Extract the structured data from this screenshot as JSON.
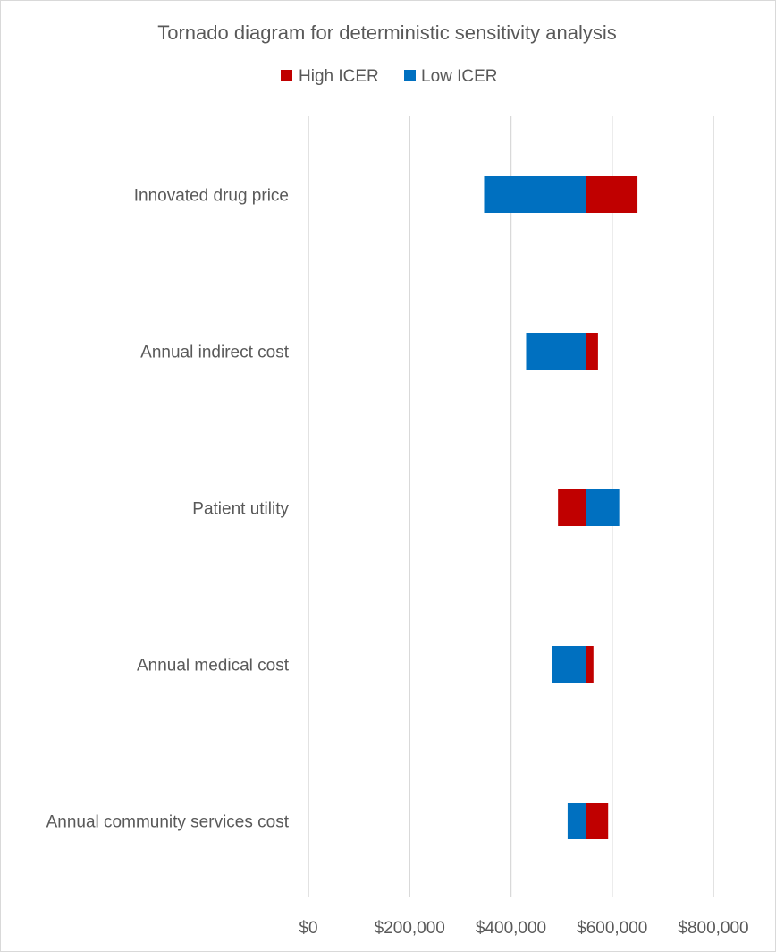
{
  "chart_data": {
    "type": "bar",
    "orientation": "horizontal",
    "title": "Tornado diagram for deterministic sensitivity analysis",
    "base_value": 548000,
    "categories": [
      "Innovated drug price",
      "Annual indirect cost",
      "Patient utility",
      "Annual medical cost",
      "Annual community services cost"
    ],
    "series": [
      {
        "name": "High ICER",
        "color": "#C00000",
        "values": [
          650000,
          572000,
          493000,
          563000,
          592000
        ]
      },
      {
        "name": "Low ICER",
        "color": "#0070C0",
        "values": [
          347000,
          430000,
          614000,
          481000,
          512000
        ]
      }
    ],
    "xlim": [
      0,
      800000
    ],
    "xticks": [
      0,
      200000,
      400000,
      600000,
      800000
    ],
    "xtick_labels": [
      "$0",
      "$200,000",
      "$400,000",
      "$600,000",
      "$800,000"
    ],
    "grid": true,
    "legend_position": "top"
  }
}
